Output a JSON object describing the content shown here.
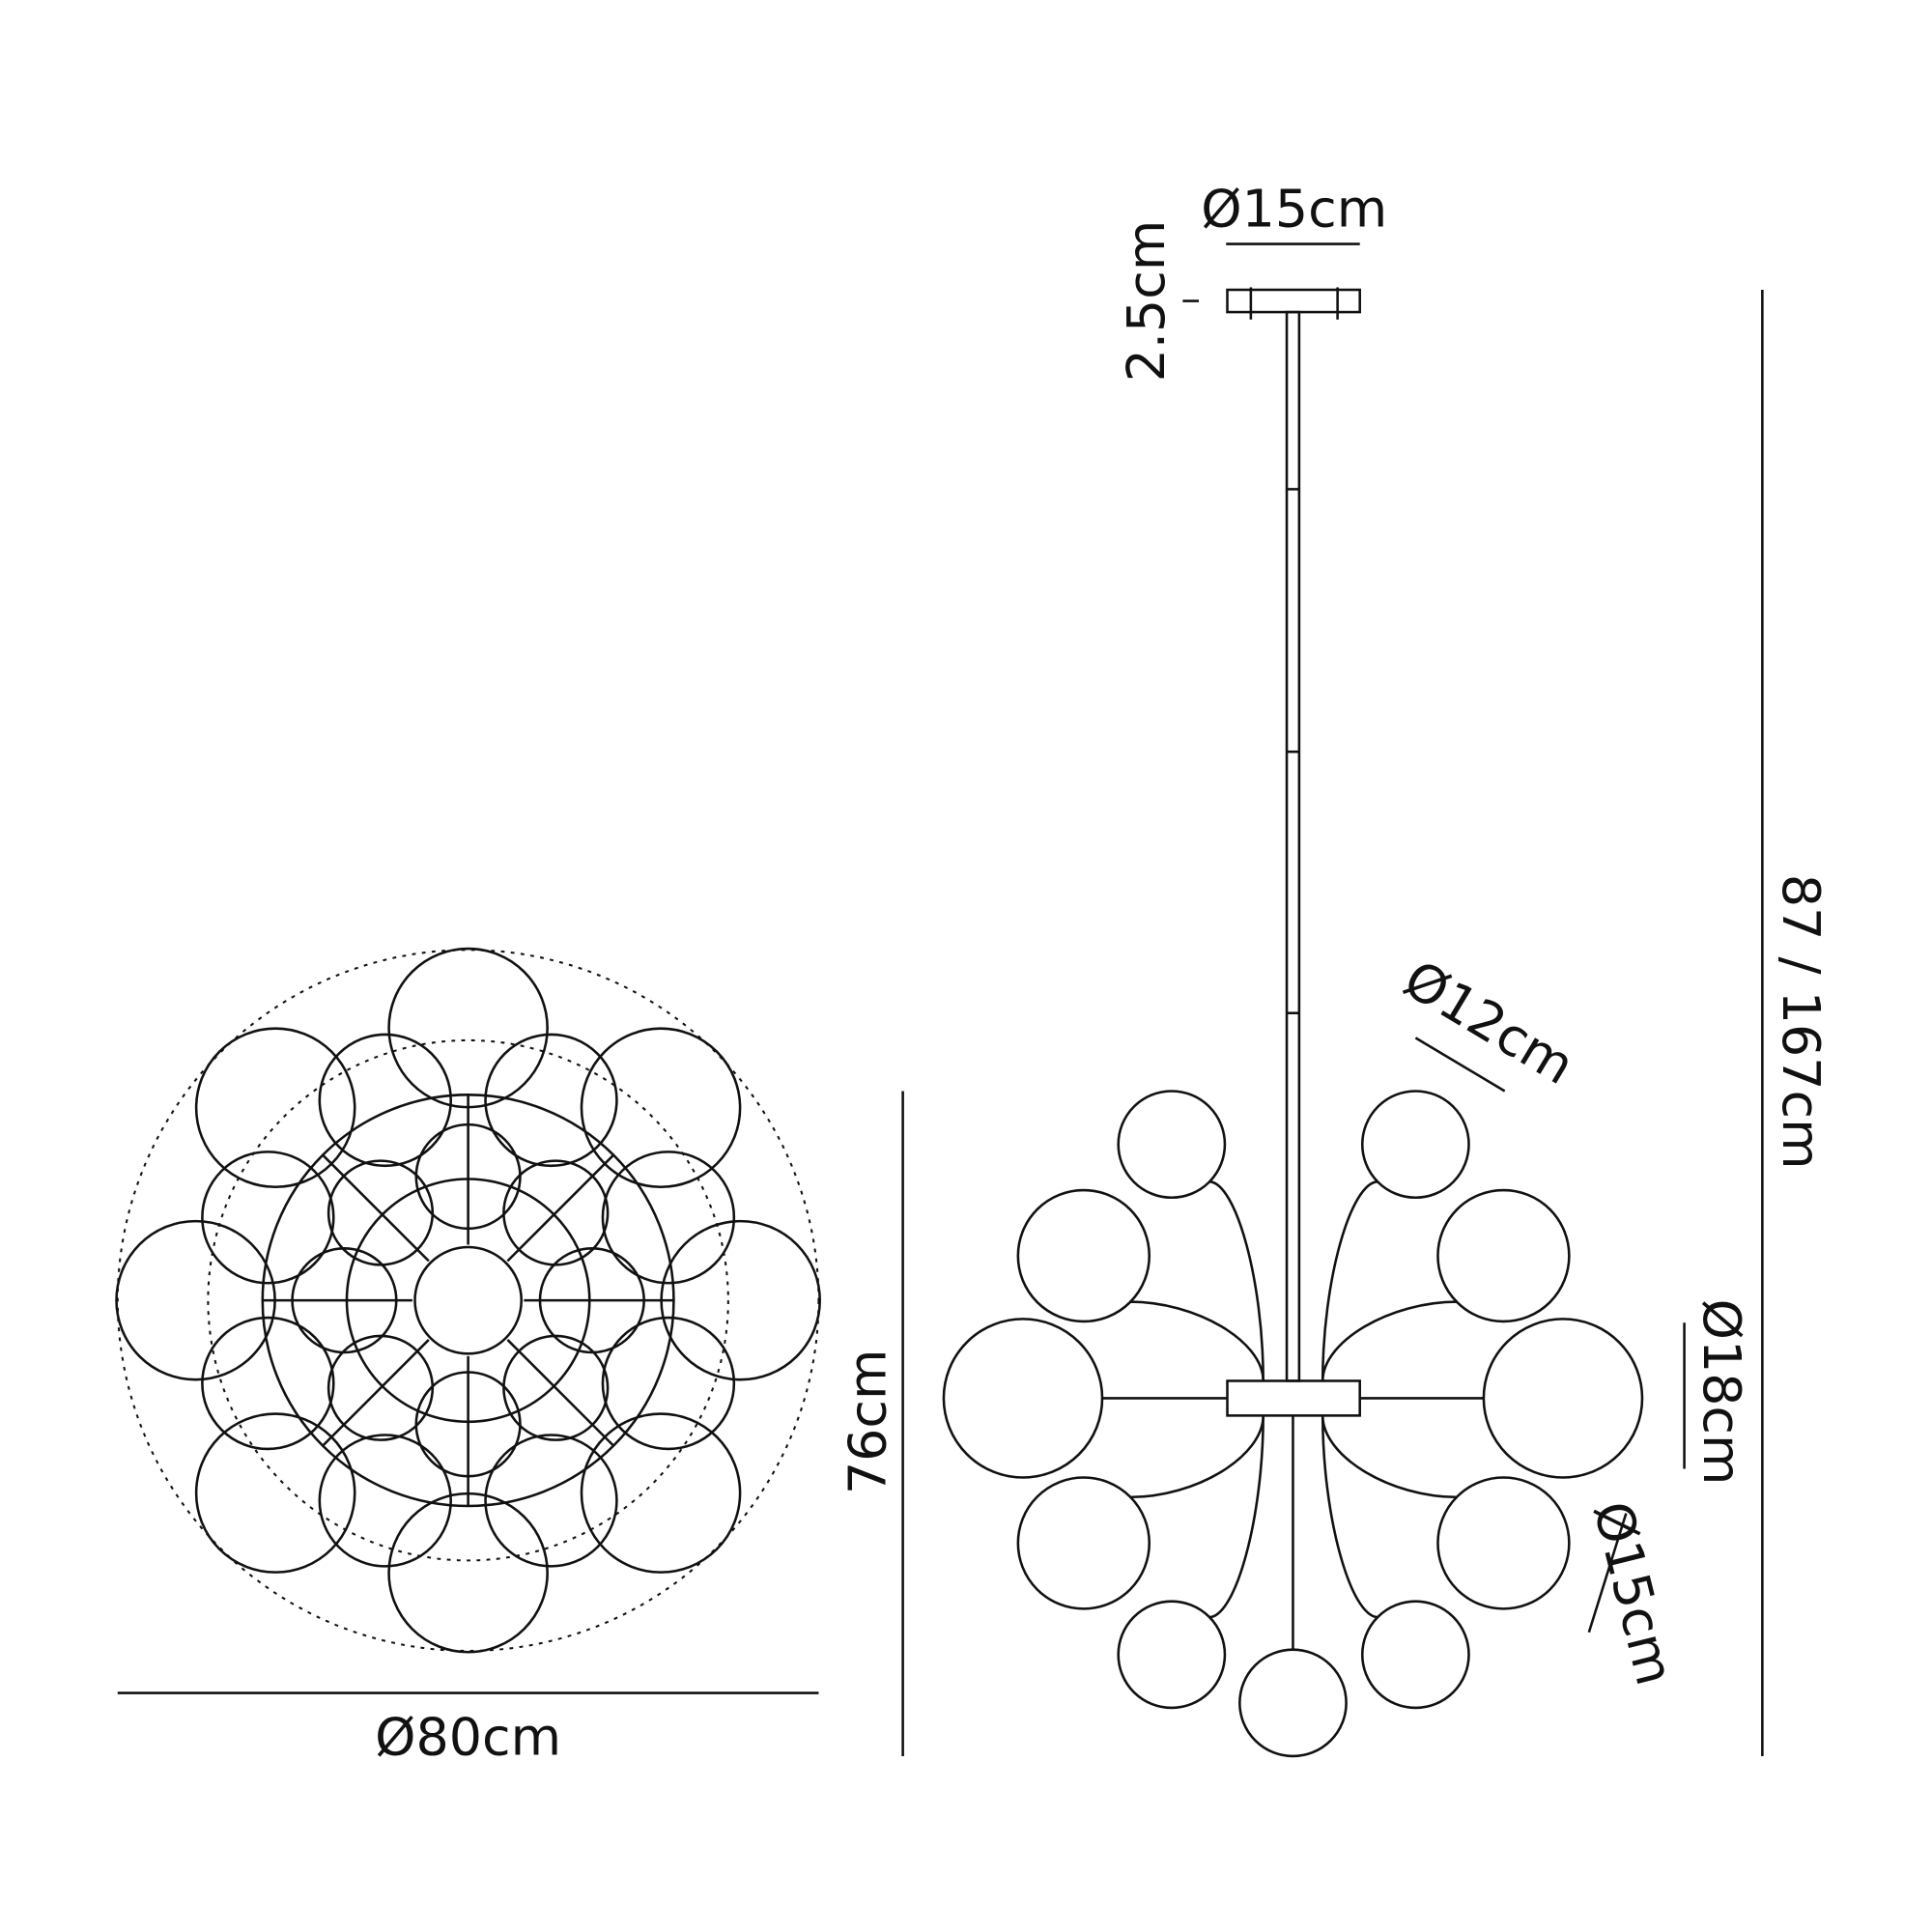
{
  "top_view": {
    "diameter_label": "Ø80cm"
  },
  "side_view": {
    "canopy_diameter_label": "Ø15cm",
    "canopy_height_label": "2.5cm",
    "total_height_label": "87 / 167cm",
    "body_height_label": "76cm",
    "small_globe_label": "Ø12cm",
    "large_globe_label": "Ø18cm",
    "medium_globe_label": "Ø15cm"
  },
  "colors": {
    "line": "#111111",
    "background": "#ffffff"
  }
}
